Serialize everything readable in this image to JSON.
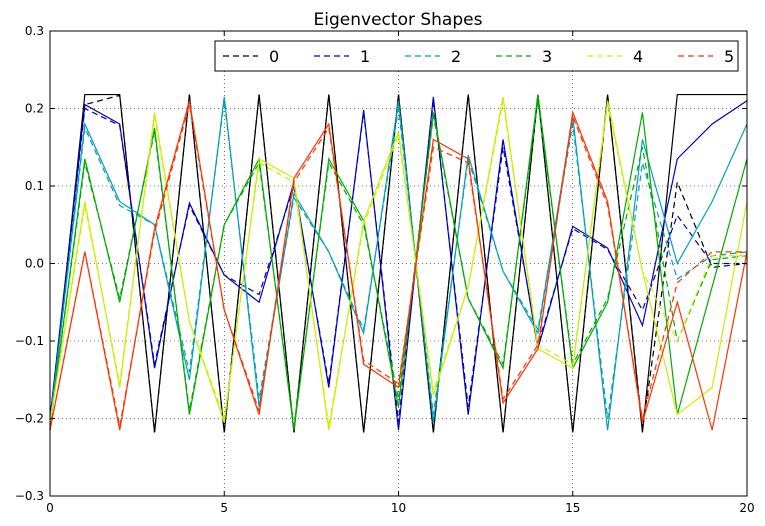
{
  "chart_data": {
    "type": "line",
    "title": "Eigenvector Shapes",
    "xlabel": "",
    "ylabel": "",
    "xlim": [
      0,
      20
    ],
    "ylim": [
      -0.3,
      0.3
    ],
    "xticks": [
      0,
      5,
      10,
      15,
      20
    ],
    "yticks": [
      -0.3,
      -0.2,
      -0.1,
      0.0,
      0.1,
      0.2,
      0.3
    ],
    "xtick_labels": [
      "0",
      "5",
      "10",
      "15",
      "20"
    ],
    "ytick_labels": [
      "−0.3",
      "−0.2",
      "−0.1",
      "0.0",
      "0.1",
      "0.2",
      "0.3"
    ],
    "grid": true,
    "legend_position": "top-right",
    "x": [
      0,
      1,
      2,
      3,
      4,
      5,
      6,
      7,
      8,
      9,
      10,
      11,
      12,
      13,
      14,
      15,
      16,
      17,
      18,
      19,
      20
    ],
    "series": [
      {
        "name": "0",
        "color": "#000000",
        "solid": [
          -0.215,
          0.218,
          0.218,
          -0.218,
          0.218,
          -0.218,
          0.218,
          -0.218,
          0.218,
          -0.218,
          0.218,
          -0.218,
          0.218,
          -0.218,
          0.218,
          -0.218,
          0.218,
          -0.218,
          0.218,
          0.218,
          0.218
        ],
        "dashed": [
          -0.215,
          0.205,
          0.217,
          -0.218,
          0.218,
          -0.218,
          0.218,
          -0.218,
          0.218,
          -0.218,
          0.218,
          -0.218,
          0.218,
          -0.218,
          0.218,
          -0.218,
          0.218,
          -0.215,
          0.105,
          -0.005,
          0.0
        ]
      },
      {
        "name": "1",
        "color": "#0000bb",
        "solid": [
          -0.2,
          0.205,
          0.18,
          -0.135,
          0.078,
          -0.015,
          -0.05,
          0.105,
          -0.16,
          0.198,
          -0.215,
          0.215,
          -0.195,
          0.16,
          -0.11,
          0.048,
          0.02,
          -0.08,
          0.135,
          0.18,
          0.21
        ],
        "dashed": [
          -0.2,
          0.2,
          0.178,
          -0.13,
          0.075,
          -0.015,
          -0.04,
          0.1,
          -0.155,
          0.195,
          -0.205,
          0.21,
          -0.185,
          0.15,
          -0.105,
          0.045,
          0.018,
          -0.06,
          0.062,
          0.0,
          0.0
        ]
      },
      {
        "name": "2",
        "color": "#00a0b8",
        "solid": [
          -0.205,
          0.18,
          0.08,
          0.05,
          -0.15,
          0.215,
          -0.185,
          0.09,
          0.015,
          -0.09,
          0.21,
          -0.205,
          0.14,
          -0.01,
          -0.09,
          0.19,
          -0.215,
          0.16,
          0.0,
          0.08,
          0.18
        ],
        "dashed": [
          -0.205,
          0.175,
          0.075,
          0.05,
          -0.14,
          0.21,
          -0.175,
          0.085,
          0.015,
          -0.085,
          0.2,
          -0.195,
          0.135,
          -0.01,
          -0.085,
          0.18,
          -0.2,
          0.13,
          -0.02,
          0.01,
          0.015
        ]
      },
      {
        "name": "3",
        "color": "#00aa00",
        "solid": [
          -0.21,
          0.135,
          -0.05,
          0.175,
          -0.195,
          0.05,
          0.135,
          -0.215,
          0.135,
          0.055,
          -0.185,
          0.195,
          -0.045,
          -0.135,
          0.218,
          -0.135,
          -0.05,
          0.195,
          -0.195,
          -0.03,
          0.135
        ],
        "dashed": [
          -0.21,
          0.13,
          -0.045,
          0.17,
          -0.19,
          0.05,
          0.13,
          -0.21,
          0.13,
          0.05,
          -0.175,
          0.19,
          -0.045,
          -0.13,
          0.21,
          -0.13,
          -0.045,
          0.15,
          -0.1,
          0.005,
          0.01
        ]
      },
      {
        "name": "4",
        "color": "#c8f000",
        "solid": [
          -0.205,
          0.08,
          -0.16,
          0.195,
          -0.075,
          -0.205,
          0.135,
          0.11,
          -0.215,
          0.055,
          0.17,
          -0.17,
          -0.03,
          0.215,
          -0.11,
          -0.135,
          0.21,
          -0.01,
          -0.195,
          -0.16,
          0.08
        ],
        "dashed": [
          -0.205,
          0.075,
          -0.155,
          0.19,
          -0.075,
          -0.2,
          0.13,
          0.105,
          -0.21,
          0.05,
          0.165,
          -0.165,
          -0.03,
          0.21,
          -0.105,
          -0.13,
          0.205,
          -0.01,
          -0.1,
          0.01,
          0.01
        ]
      },
      {
        "name": "5",
        "color": "#ff3300",
        "solid": [
          -0.215,
          0.015,
          -0.215,
          0.045,
          0.21,
          -0.06,
          -0.195,
          0.11,
          0.18,
          -0.13,
          -0.16,
          0.16,
          0.135,
          -0.18,
          -0.11,
          0.195,
          0.08,
          -0.205,
          -0.05,
          -0.215,
          0.015
        ],
        "dashed": [
          -0.215,
          0.015,
          -0.21,
          0.04,
          0.205,
          -0.06,
          -0.19,
          0.105,
          0.175,
          -0.125,
          -0.155,
          0.15,
          0.13,
          -0.175,
          -0.105,
          0.19,
          0.075,
          -0.2,
          -0.025,
          0.015,
          0.015
        ]
      }
    ]
  }
}
